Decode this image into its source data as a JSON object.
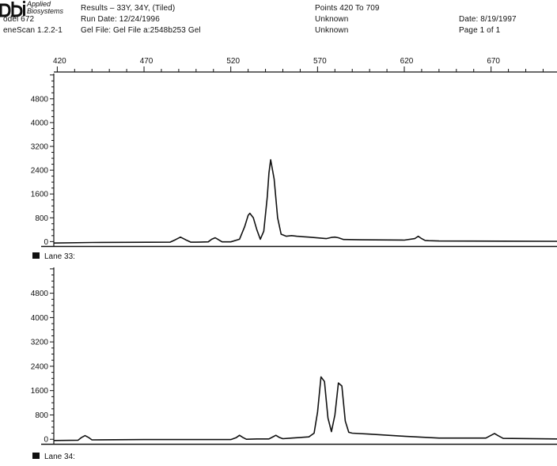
{
  "header": {
    "brand_line1": "Applied",
    "brand_line2": "Biosystems",
    "model": "odel 672",
    "software": "eneScan  1.2.2-1",
    "results": "Results – 33Y, 34Y,  (Tiled)",
    "run_date": "Run Date:  12/24/1996",
    "gel_file": "Gel File: Gel File a:2548b253 Gel",
    "points": "Points 420 To 709",
    "unknown1": "Unknown",
    "unknown2": "Unknown",
    "date": "Date:  8/19/1997",
    "page": "Page 1 of 1"
  },
  "colors": {
    "ink": "#111111",
    "background": "#ffffff"
  },
  "chart_data": [
    {
      "type": "line",
      "lane_label": "Lane 33:",
      "x_ticks": [
        420,
        470,
        520,
        570,
        620,
        670
      ],
      "y_ticks": [
        0,
        800,
        1600,
        2400,
        3200,
        4000,
        4800
      ],
      "xlim": [
        418,
        708
      ],
      "ylim": [
        -150,
        5700
      ],
      "grid": false,
      "x": [
        418,
        440,
        485,
        488,
        491,
        494,
        497,
        500,
        507,
        509,
        511,
        513,
        515,
        520,
        525,
        528,
        530,
        531,
        533,
        535,
        537,
        539,
        541,
        542,
        543,
        545,
        547,
        549,
        552,
        555,
        558,
        565,
        575,
        578,
        580,
        582,
        585,
        595,
        620,
        626,
        628,
        630,
        632,
        634,
        640,
        708
      ],
      "y": [
        -50,
        -30,
        -20,
        60,
        150,
        60,
        -20,
        -20,
        -10,
        80,
        130,
        60,
        -10,
        -10,
        80,
        500,
        880,
        950,
        800,
        400,
        80,
        350,
        1500,
        2300,
        2750,
        2100,
        800,
        250,
        180,
        200,
        180,
        150,
        100,
        140,
        150,
        130,
        70,
        60,
        50,
        100,
        180,
        100,
        40,
        30,
        20,
        10
      ]
    },
    {
      "type": "line",
      "lane_label": "Lane 34:",
      "x_ticks": [
        420,
        470,
        520,
        570,
        620,
        670
      ],
      "y_ticks": [
        0,
        800,
        1600,
        2400,
        3200,
        4000,
        4800
      ],
      "xlim": [
        418,
        708
      ],
      "ylim": [
        -150,
        5700
      ],
      "grid": false,
      "x": [
        418,
        432,
        434,
        436,
        438,
        440,
        470,
        520,
        523,
        525,
        527,
        529,
        535,
        542,
        544,
        546,
        548,
        550,
        555,
        565,
        568,
        570,
        572,
        574,
        576,
        578,
        580,
        582,
        584,
        586,
        588,
        590,
        600,
        620,
        640,
        667,
        670,
        672,
        674,
        677,
        708
      ],
      "y": [
        -40,
        -30,
        60,
        120,
        60,
        -20,
        -10,
        -10,
        50,
        130,
        60,
        0,
        10,
        10,
        70,
        130,
        60,
        20,
        40,
        80,
        200,
        900,
        2050,
        1900,
        700,
        250,
        800,
        1850,
        1750,
        600,
        230,
        200,
        170,
        100,
        40,
        40,
        130,
        190,
        120,
        30,
        10
      ]
    }
  ]
}
